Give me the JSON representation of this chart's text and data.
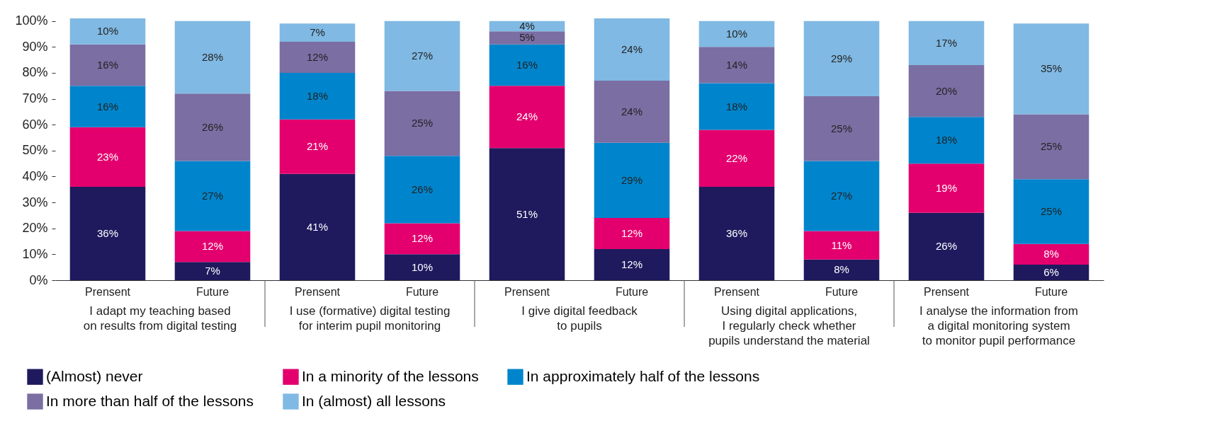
{
  "chart_data": {
    "type": "bar",
    "stacked": true,
    "legend": "bottom",
    "grid": false,
    "categories": [
      "Prensent",
      "Future",
      "Prensent",
      "Future",
      "Prensent",
      "Future",
      "Prensent",
      "Future",
      "Prensent",
      "Future"
    ],
    "annotations": [
      "I adapt my teaching based\non results from digital testing",
      "I use (formative) digital testing\nfor interim pupil monitoring",
      "I give digital feedback\nto pupils",
      "Using digital applications,\nI regularly check whether\npupils understand the material",
      "I analyse the information from\na digital monitoring system\nto monitor pupil performance"
    ],
    "series": [
      {
        "name": "(Almost) never",
        "color": "#1f1a5e",
        "values": [
          36,
          7,
          41,
          10,
          51,
          12,
          36,
          8,
          26,
          6
        ],
        "value_labels": [
          "36%",
          "7%",
          "41%",
          "10%",
          "51%",
          "12%",
          "36%",
          "8%",
          "26%",
          "6%"
        ]
      },
      {
        "name": "In a minority of the lessons",
        "color": "#e3006e",
        "values": [
          23,
          12,
          21,
          12,
          24,
          12,
          22,
          11,
          19,
          8
        ],
        "value_labels": [
          "23%",
          "12%",
          "21%",
          "12%",
          "24%",
          "12%",
          "22%",
          "11%",
          "19%",
          "8%"
        ]
      },
      {
        "name": "In approximately half of the lessons",
        "color": "#0085cc",
        "values": [
          16,
          27,
          18,
          26,
          16,
          29,
          18,
          27,
          18,
          25
        ],
        "value_labels": [
          "16%",
          "27%",
          "18%",
          "26%",
          "16%",
          "29%",
          "18%",
          "27%",
          "18%",
          "25%"
        ]
      },
      {
        "name": "In more than half of the lessons",
        "color": "#7a6ea3",
        "values": [
          16,
          26,
          12,
          25,
          5,
          24,
          14,
          25,
          20,
          25
        ],
        "value_labels": [
          "16%",
          "26%",
          "12%",
          "25%",
          "5%",
          "24%",
          "14%",
          "25%",
          "20%",
          "25%"
        ]
      },
      {
        "name": "In (almost) all lessons",
        "color": "#80b9e3",
        "values": [
          10,
          28,
          7,
          27,
          4,
          24,
          10,
          29,
          17,
          35
        ],
        "value_labels": [
          "10%",
          "28%",
          "7%",
          "27%",
          "4%",
          "24%",
          "10%",
          "29%",
          "17%",
          "35%"
        ]
      }
    ],
    "ylim": [
      0,
      101
    ],
    "yticks": [
      {
        "value": 0,
        "label": "0%"
      },
      {
        "value": 10,
        "label": "10%"
      },
      {
        "value": 20,
        "label": "20%"
      },
      {
        "value": 30,
        "label": "30%"
      },
      {
        "value": 40,
        "label": "40%"
      },
      {
        "value": 50,
        "label": "50%"
      },
      {
        "value": 60,
        "label": "60%"
      },
      {
        "value": 70,
        "label": "70%"
      },
      {
        "value": 80,
        "label": "80%"
      },
      {
        "value": 90,
        "label": "90%"
      },
      {
        "value": 100,
        "label": "100%"
      }
    ]
  }
}
